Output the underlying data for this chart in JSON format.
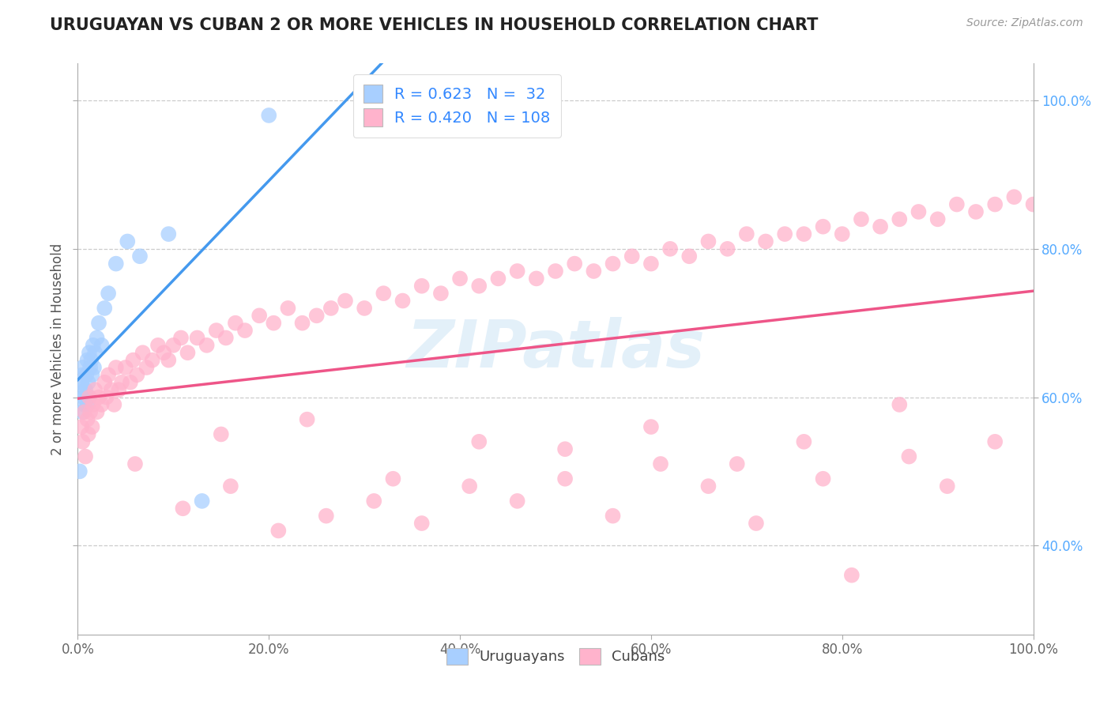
{
  "title": "URUGUAYAN VS CUBAN 2 OR MORE VEHICLES IN HOUSEHOLD CORRELATION CHART",
  "source": "Source: ZipAtlas.com",
  "ylabel": "2 or more Vehicles in Household",
  "uruguayan_color": "#a8cfff",
  "cuban_color": "#ffb3cc",
  "uruguayan_line_color": "#4499ee",
  "cuban_line_color": "#ee5588",
  "legend_R_uruguayan": "0.623",
  "legend_N_uruguayan": "32",
  "legend_R_cuban": "0.420",
  "legend_N_cuban": "108",
  "xtick_positions": [
    0.0,
    0.2,
    0.4,
    0.6,
    0.8,
    1.0
  ],
  "xtick_labels": [
    "0.0%",
    "20.0%",
    "40.0%",
    "60.0%",
    "80.0%",
    "100.0%"
  ],
  "ytick_positions": [
    0.4,
    0.6,
    0.8,
    1.0
  ],
  "ytick_labels": [
    "40.0%",
    "60.0%",
    "80.0%",
    "100.0%"
  ],
  "xmin": 0.0,
  "xmax": 1.0,
  "ymin": 0.28,
  "ymax": 1.05,
  "uruguayan_x": [
    0.002,
    0.003,
    0.004,
    0.005,
    0.005,
    0.005,
    0.006,
    0.007,
    0.008,
    0.009,
    0.01,
    0.01,
    0.011,
    0.012,
    0.012,
    0.013,
    0.014,
    0.015,
    0.016,
    0.017,
    0.018,
    0.02,
    0.022,
    0.025,
    0.028,
    0.032,
    0.04,
    0.052,
    0.065,
    0.095,
    0.13,
    0.2
  ],
  "uruguayan_y": [
    0.5,
    0.61,
    0.62,
    0.58,
    0.63,
    0.64,
    0.6,
    0.59,
    0.61,
    0.63,
    0.59,
    0.65,
    0.62,
    0.6,
    0.66,
    0.64,
    0.65,
    0.63,
    0.67,
    0.64,
    0.66,
    0.68,
    0.7,
    0.67,
    0.72,
    0.74,
    0.78,
    0.81,
    0.79,
    0.82,
    0.46,
    0.98
  ],
  "cuban_x": [
    0.004,
    0.005,
    0.007,
    0.008,
    0.01,
    0.011,
    0.012,
    0.013,
    0.015,
    0.016,
    0.018,
    0.02,
    0.022,
    0.025,
    0.028,
    0.03,
    0.032,
    0.035,
    0.038,
    0.04,
    0.043,
    0.046,
    0.05,
    0.055,
    0.058,
    0.062,
    0.068,
    0.072,
    0.078,
    0.084,
    0.09,
    0.095,
    0.1,
    0.108,
    0.115,
    0.125,
    0.135,
    0.145,
    0.155,
    0.165,
    0.175,
    0.19,
    0.205,
    0.22,
    0.235,
    0.25,
    0.265,
    0.28,
    0.3,
    0.32,
    0.34,
    0.36,
    0.38,
    0.4,
    0.42,
    0.44,
    0.46,
    0.48,
    0.5,
    0.52,
    0.54,
    0.56,
    0.58,
    0.6,
    0.62,
    0.64,
    0.66,
    0.68,
    0.7,
    0.72,
    0.74,
    0.76,
    0.78,
    0.8,
    0.82,
    0.84,
    0.86,
    0.88,
    0.9,
    0.92,
    0.94,
    0.96,
    0.98,
    1.0,
    0.06,
    0.11,
    0.16,
    0.21,
    0.26,
    0.31,
    0.36,
    0.41,
    0.46,
    0.51,
    0.56,
    0.61,
    0.66,
    0.71,
    0.76,
    0.81,
    0.86,
    0.91,
    0.96,
    0.15,
    0.24,
    0.33,
    0.42,
    0.51,
    0.6,
    0.69,
    0.78,
    0.87
  ],
  "cuban_y": [
    0.56,
    0.54,
    0.58,
    0.52,
    0.57,
    0.55,
    0.6,
    0.58,
    0.56,
    0.59,
    0.61,
    0.58,
    0.6,
    0.59,
    0.62,
    0.6,
    0.63,
    0.61,
    0.59,
    0.64,
    0.61,
    0.62,
    0.64,
    0.62,
    0.65,
    0.63,
    0.66,
    0.64,
    0.65,
    0.67,
    0.66,
    0.65,
    0.67,
    0.68,
    0.66,
    0.68,
    0.67,
    0.69,
    0.68,
    0.7,
    0.69,
    0.71,
    0.7,
    0.72,
    0.7,
    0.71,
    0.72,
    0.73,
    0.72,
    0.74,
    0.73,
    0.75,
    0.74,
    0.76,
    0.75,
    0.76,
    0.77,
    0.76,
    0.77,
    0.78,
    0.77,
    0.78,
    0.79,
    0.78,
    0.8,
    0.79,
    0.81,
    0.8,
    0.82,
    0.81,
    0.82,
    0.82,
    0.83,
    0.82,
    0.84,
    0.83,
    0.84,
    0.85,
    0.84,
    0.86,
    0.85,
    0.86,
    0.87,
    0.86,
    0.51,
    0.45,
    0.48,
    0.42,
    0.44,
    0.46,
    0.43,
    0.48,
    0.46,
    0.49,
    0.44,
    0.51,
    0.48,
    0.43,
    0.54,
    0.36,
    0.59,
    0.48,
    0.54,
    0.55,
    0.57,
    0.49,
    0.54,
    0.53,
    0.56,
    0.51,
    0.49,
    0.52
  ]
}
